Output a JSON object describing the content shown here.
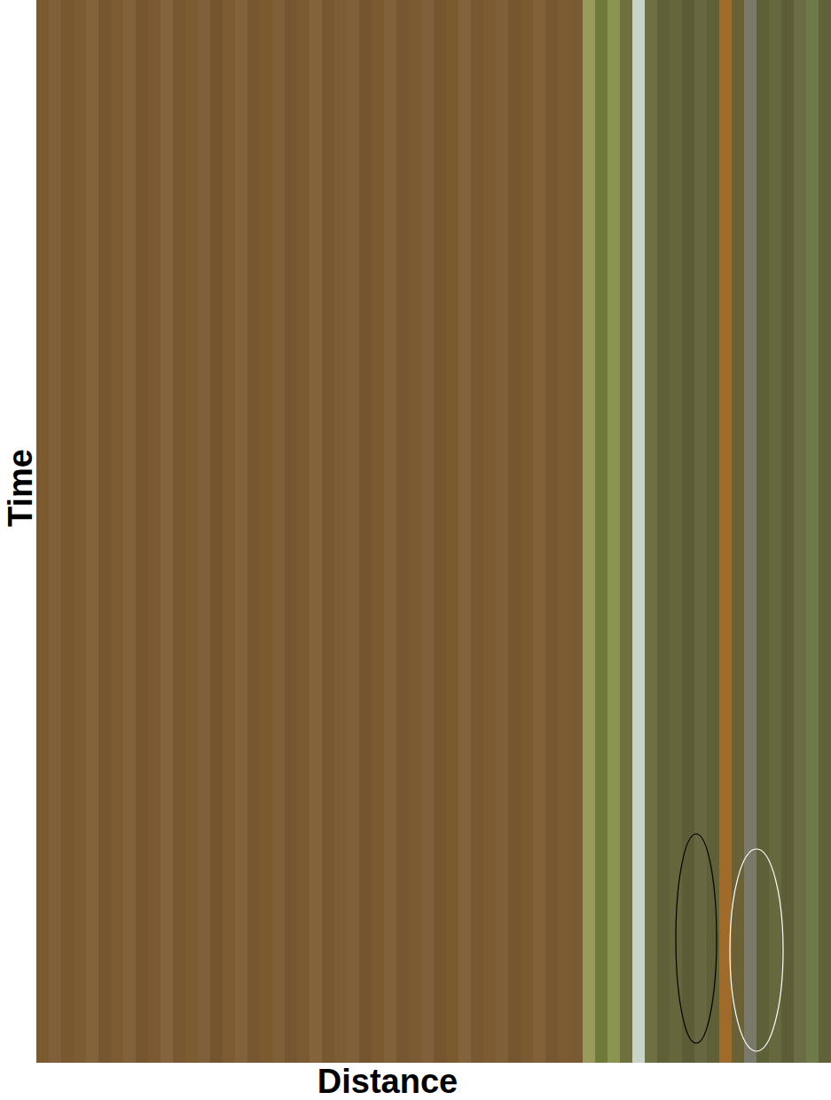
{
  "chart_data": {
    "type": "heatmap",
    "x_label": "Distance",
    "y_label": "Time",
    "tick_labels": false,
    "columns": [
      "#7b5a30",
      "#80603a",
      "#785830",
      "#7d5c33",
      "#82633a",
      "#775731",
      "#7c5b32",
      "#80613a",
      "#765630",
      "#7b5a31",
      "#83643c",
      "#785832",
      "#7d5c32",
      "#80603a",
      "#755530",
      "#7c5b33",
      "#82623b",
      "#775732",
      "#7b5a30",
      "#7f5f38",
      "#765631",
      "#7c5b32",
      "#83643c",
      "#785831",
      "#7d5d34",
      "#80603a",
      "#755530",
      "#7b5a31",
      "#81613a",
      "#775732",
      "#7c5b32",
      "#80603a",
      "#765631",
      "#7b5a30",
      "#82633b",
      "#785832",
      "#7d5c33",
      "#7f5f38",
      "#765630",
      "#7b5a31",
      "#81613a",
      "#775731",
      "#7c5b32",
      "#7a5a34",
      "#9a9a5a",
      "#6f7a3a",
      "#8a9650",
      "#6e7040",
      "#c8d4c8",
      "#6d7040",
      "#5f6038",
      "#65663c",
      "#5c5d36",
      "#676842",
      "#5f6038",
      "#a06a2a",
      "#6a6236",
      "#7a7a6a",
      "#5e6038",
      "#66683e",
      "#5d5e37",
      "#6b6d44",
      "#6e7a48",
      "#60623a"
    ],
    "annotations": [
      {
        "shape": "ellipse",
        "color": "#000000"
      },
      {
        "shape": "ellipse",
        "color": "#ffffff"
      }
    ]
  }
}
